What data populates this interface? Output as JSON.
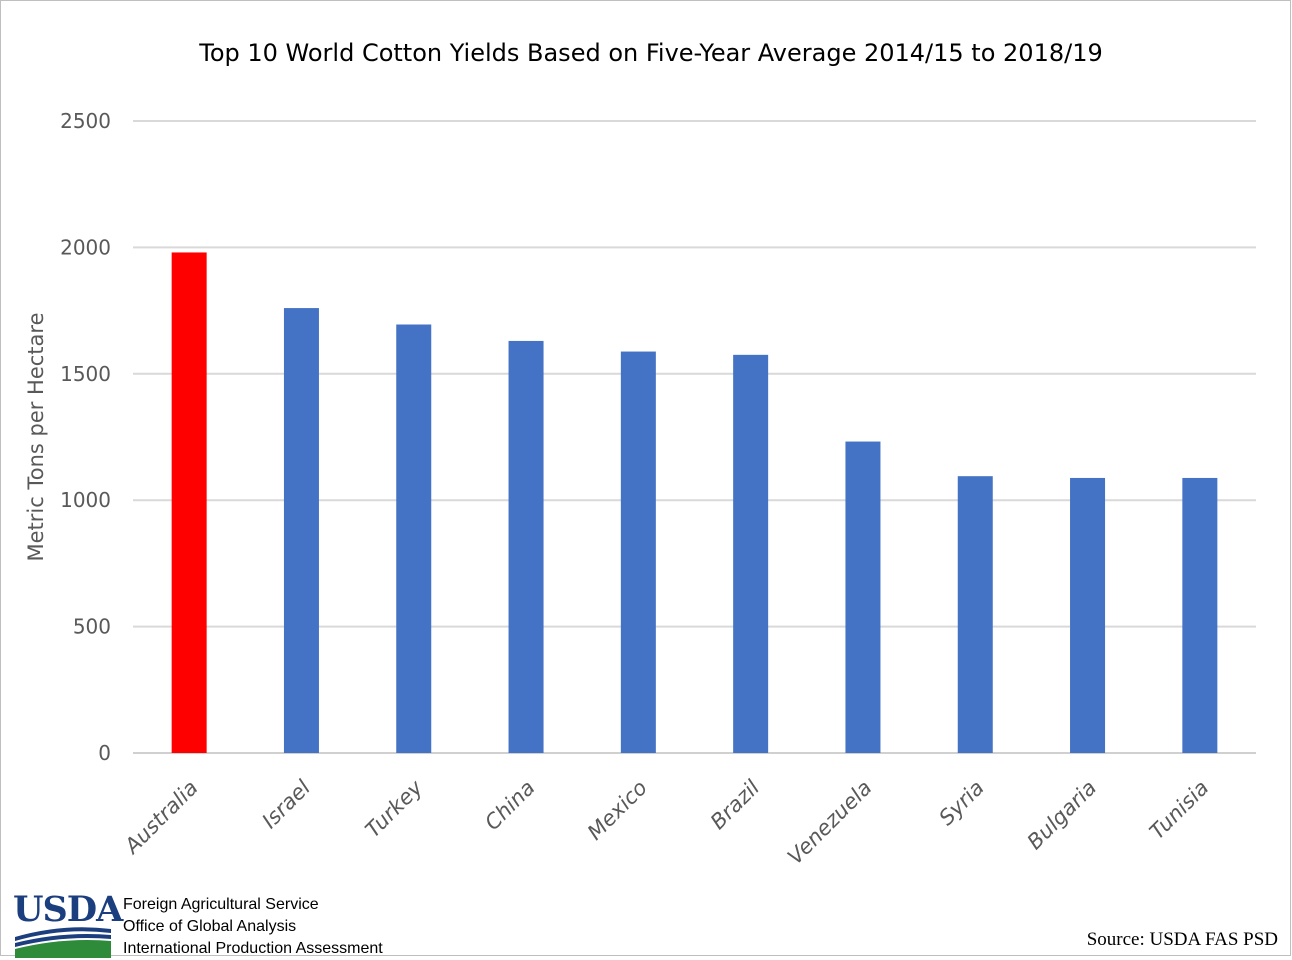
{
  "chart_data": {
    "type": "bar",
    "title": "Top 10 World Cotton Yields Based on Five-Year Average 2014/15 to 2018/19",
    "ylabel": "Metric Tons per Hectare",
    "xlabel": "",
    "categories": [
      "Australia",
      "Israel",
      "Turkey",
      "China",
      "Mexico",
      "Brazil",
      "Venezuela",
      "Syria",
      "Bulgaria",
      "Tunisia"
    ],
    "values": [
      1980,
      1760,
      1695,
      1630,
      1588,
      1575,
      1232,
      1095,
      1088,
      1088
    ],
    "ylim": [
      0,
      2500
    ],
    "yticks": [
      "0",
      "500",
      "1000",
      "1500",
      "2000",
      "2500"
    ],
    "grid": true,
    "legend": "none",
    "highlight_color": "#ff0000",
    "bar_color": "#4472c4",
    "highlight_index": 0
  },
  "footer": {
    "logo_text": "USDA",
    "agency_lines": [
      "Foreign Agricultural Service",
      "Office of Global Analysis",
      "International Production Assessment"
    ],
    "source": "Source: USDA FAS PSD"
  }
}
